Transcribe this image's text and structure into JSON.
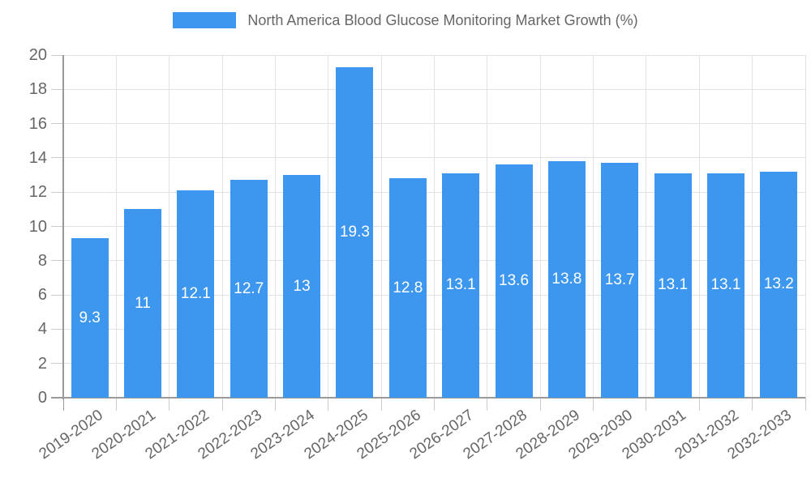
{
  "legend": {
    "series_label": "North America Blood Glucose Monitoring Market Growth (%)"
  },
  "chart_data": {
    "type": "bar",
    "title": "North America Blood Glucose Monitoring Market Growth (%)",
    "series_name": "North America Blood Glucose Monitoring Market Growth (%)",
    "categories": [
      "2019-2020",
      "2020-2021",
      "2021-2022",
      "2022-2023",
      "2023-2024",
      "2024-2025",
      "2025-2026",
      "2026-2027",
      "2027-2028",
      "2028-2029",
      "2029-2030",
      "2030-2031",
      "2031-2032",
      "2032-2033"
    ],
    "values": [
      9.3,
      11,
      12.1,
      12.7,
      13,
      19.3,
      12.8,
      13.1,
      13.6,
      13.8,
      13.7,
      13.1,
      13.1,
      13.2
    ],
    "value_labels": [
      "9.3",
      "11",
      "12.1",
      "12.7",
      "13",
      "19.3",
      "12.8",
      "13.1",
      "13.6",
      "13.8",
      "13.7",
      "13.1",
      "13.1",
      "13.2"
    ],
    "xlabel": "",
    "ylabel": "",
    "ylim": [
      0,
      20
    ],
    "y_tick_step": 2,
    "y_tick_labels": [
      "0",
      "2",
      "4",
      "6",
      "8",
      "10",
      "12",
      "14",
      "16",
      "18",
      "20"
    ],
    "grid": true,
    "legend_position": "top",
    "x_label_rotation_deg": -35,
    "colors": {
      "bar": "#3d97ee",
      "value_label": "#ffffff",
      "axis_text": "#666666",
      "axis_line": "#9a9a9a",
      "gridline": "#e2e2e2",
      "tick": "#cccccc"
    }
  }
}
